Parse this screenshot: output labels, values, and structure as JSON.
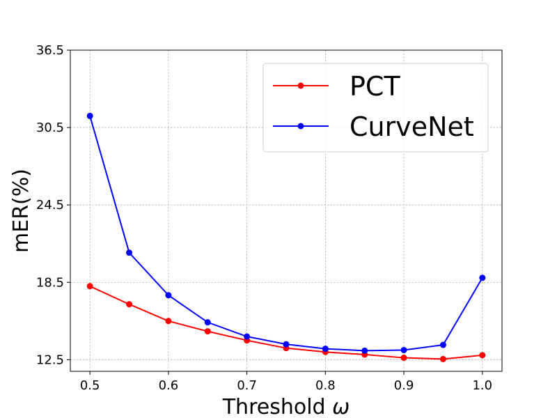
{
  "chart_data": {
    "type": "line",
    "title": "",
    "xlabel": "Threshold ω",
    "ylabel": "mER(%)",
    "x": [
      0.5,
      0.55,
      0.6,
      0.65,
      0.7,
      0.75,
      0.8,
      0.85,
      0.9,
      0.95,
      1.0
    ],
    "xlim": [
      0.475,
      1.025
    ],
    "ylim": [
      11.6,
      36.5
    ],
    "xticks": [
      0.5,
      0.6,
      0.7,
      0.8,
      0.9,
      1.0
    ],
    "xtick_labels": [
      "0.5",
      "0.6",
      "0.7",
      "0.8",
      "0.9",
      "1.0"
    ],
    "yticks": [
      12.5,
      18.5,
      24.5,
      30.5,
      36.5
    ],
    "ytick_labels": [
      "12.5",
      "18.5",
      "24.5",
      "30.5",
      "36.5"
    ],
    "grid": true,
    "legend_position": "top-right",
    "series": [
      {
        "name": "PCT",
        "color": "#ff0000",
        "values": [
          18.2,
          16.8,
          15.5,
          14.7,
          14.0,
          13.4,
          13.1,
          12.9,
          12.65,
          12.55,
          12.85
        ]
      },
      {
        "name": "CurveNet",
        "color": "#0000ff",
        "values": [
          31.4,
          20.8,
          17.5,
          15.4,
          14.3,
          13.7,
          13.35,
          13.2,
          13.25,
          13.65,
          18.85
        ]
      }
    ]
  }
}
